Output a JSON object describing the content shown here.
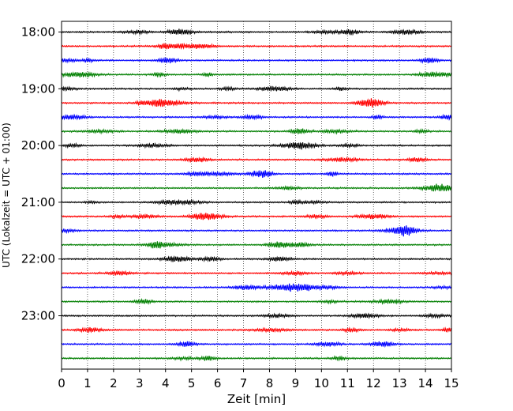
{
  "chart_data": {
    "type": "line",
    "title": "",
    "xlabel": "Zeit  [min]",
    "ylabel": "UTC (Lokalzeit = UTC + 01:00)",
    "xlim": [
      0,
      15
    ],
    "x_ticks": [
      "0",
      "1",
      "2",
      "3",
      "4",
      "5",
      "6",
      "7",
      "8",
      "9",
      "10",
      "11",
      "12",
      "13",
      "14",
      "15"
    ],
    "y_ticks": [
      "18:00",
      "19:00",
      "20:00",
      "21:00",
      "22:00",
      "23:00"
    ],
    "grid": "vertical dotted at each minute",
    "trace_interval_min": 15,
    "first_trace": "18:00",
    "trace_count": 24,
    "trace_colors": [
      "#000000",
      "#ff0000",
      "#0000ff",
      "#007f00"
    ]
  }
}
